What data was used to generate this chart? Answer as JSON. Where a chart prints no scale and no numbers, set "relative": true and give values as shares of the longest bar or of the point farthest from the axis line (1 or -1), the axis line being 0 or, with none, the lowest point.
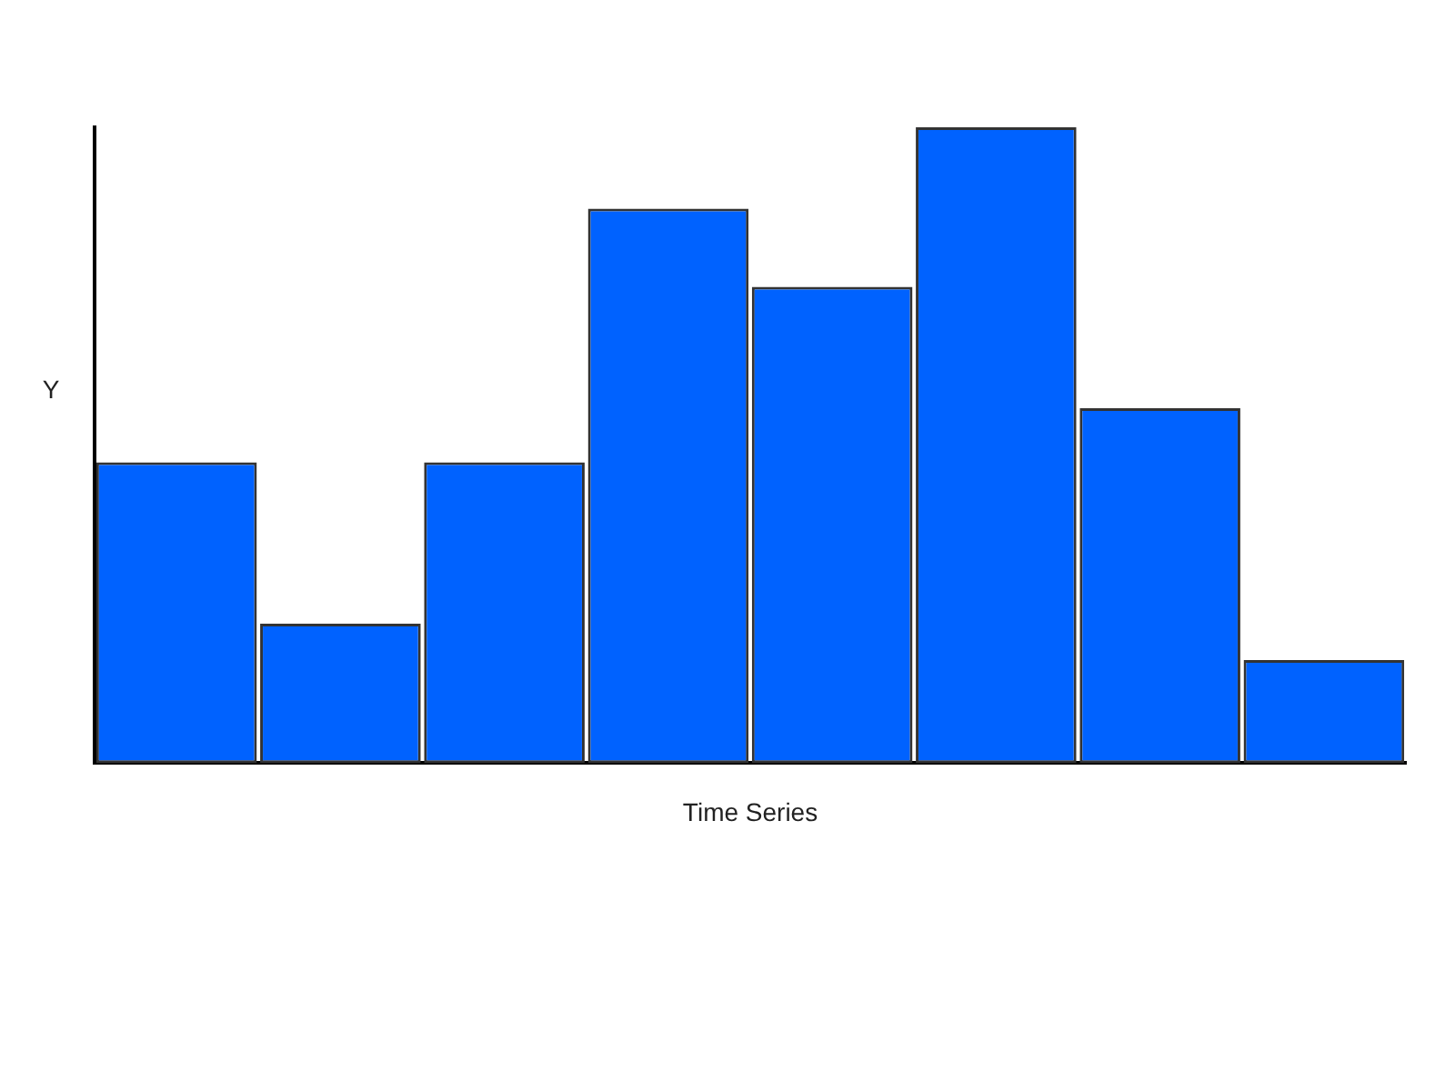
{
  "chart_data": {
    "type": "bar",
    "relative": true,
    "xlabel": "Time Series",
    "ylabel": "Y",
    "categories": [
      null,
      null,
      null,
      null,
      null,
      null,
      null,
      null
    ],
    "values": [
      0.473,
      0.219,
      0.473,
      0.872,
      0.749,
      1,
      0.558,
      0.162
    ],
    "color": "#0062ff",
    "grid": false,
    "legend": false
  }
}
